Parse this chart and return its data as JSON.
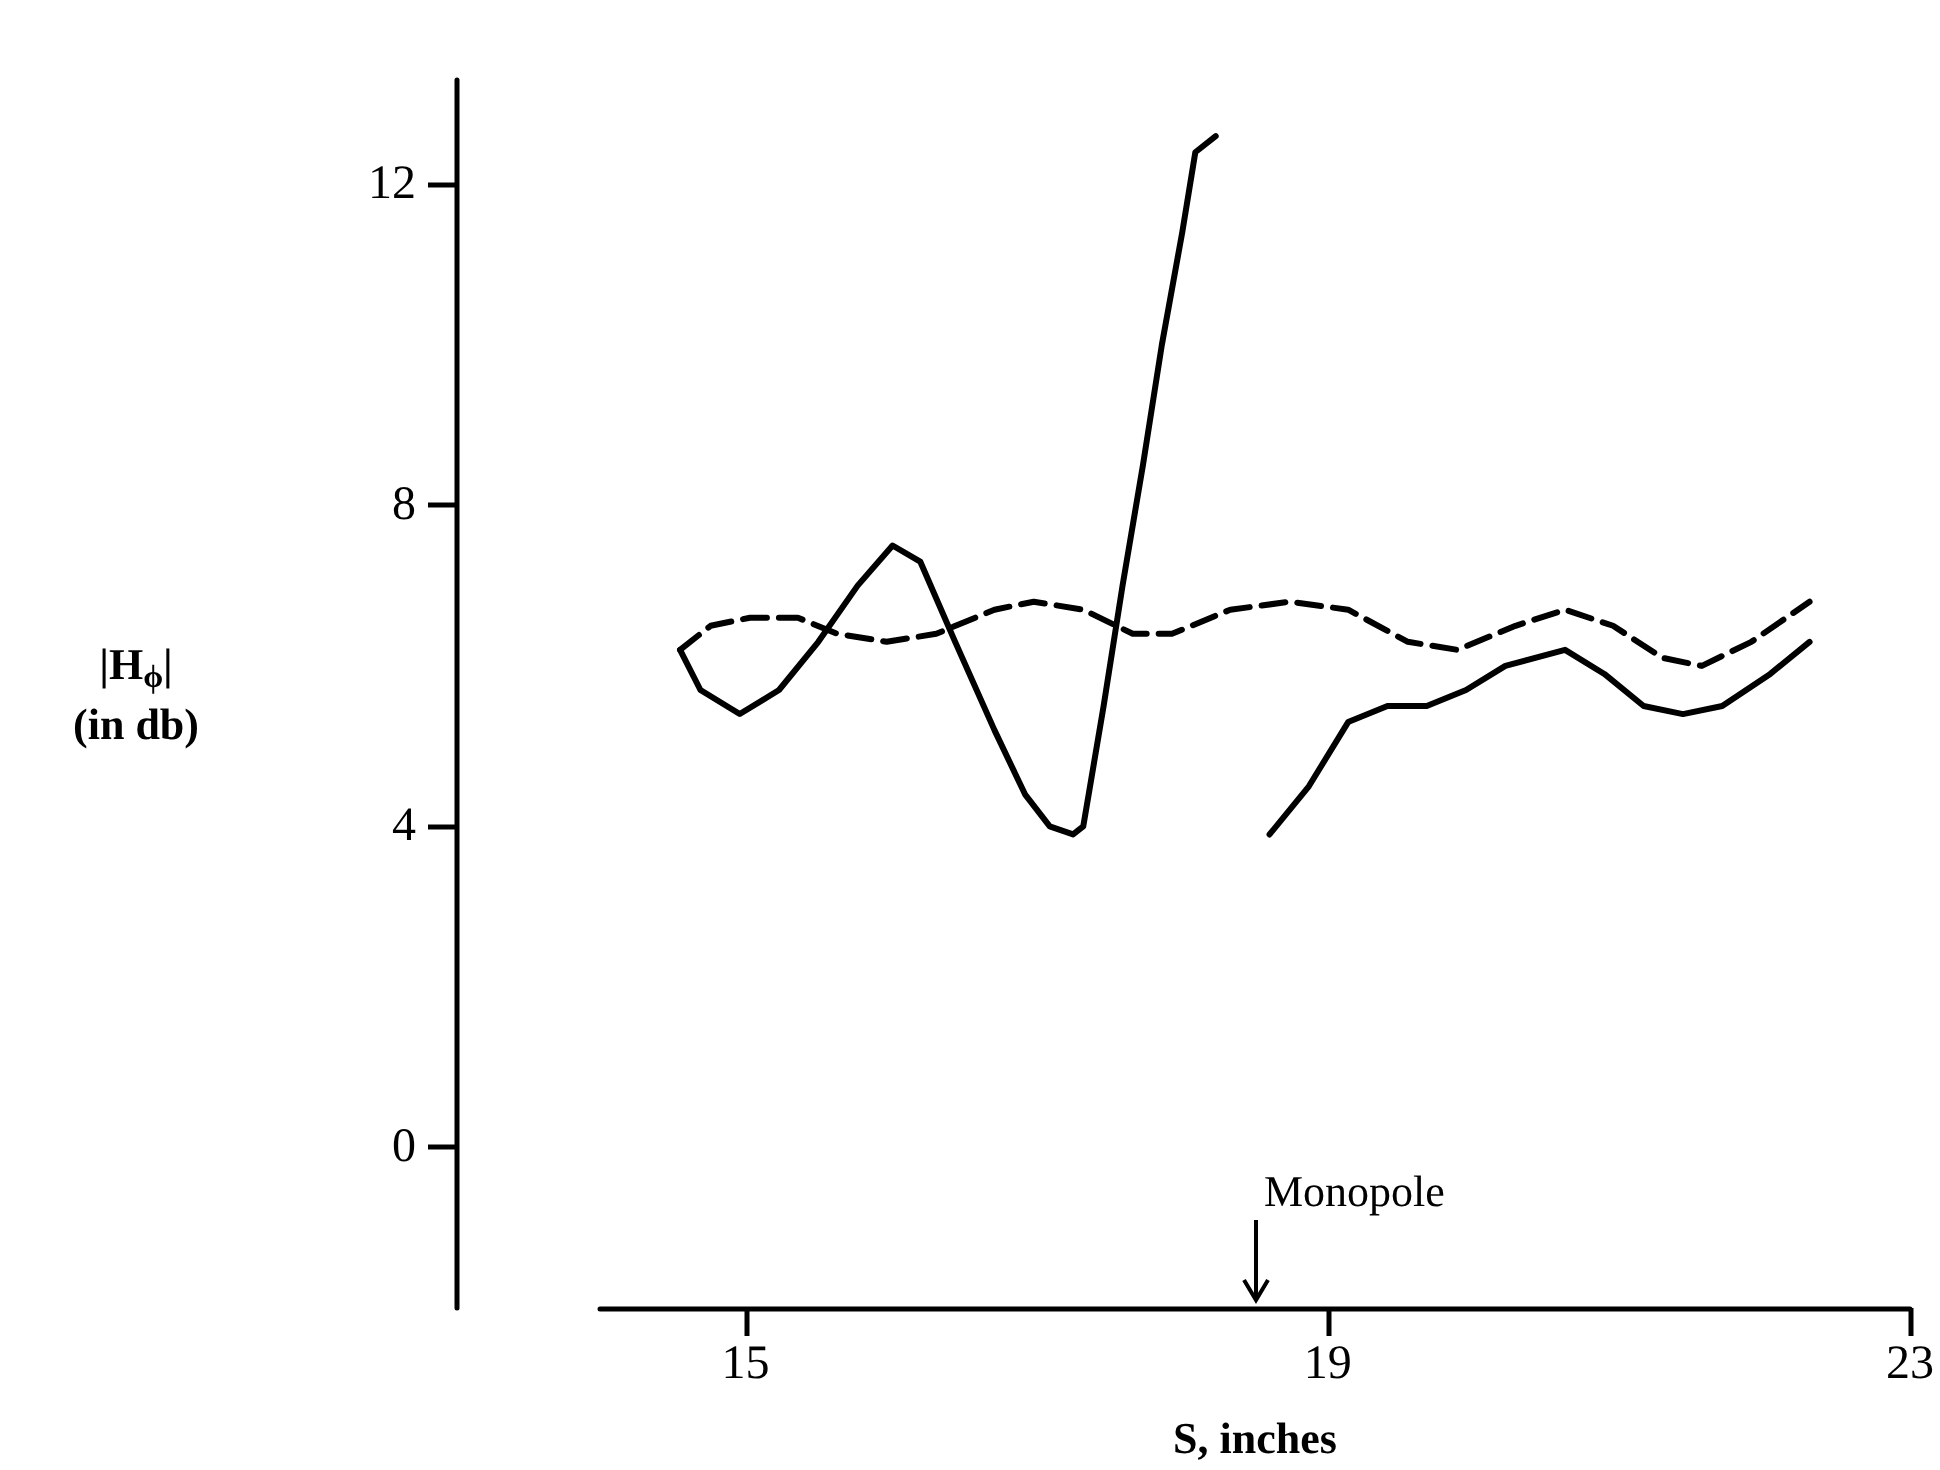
{
  "chart_data": {
    "type": "line",
    "ylabel": "|H$_{ϕ}$|\n(in db)",
    "xlabel": "S, inches",
    "xlim": [
      14,
      23
    ],
    "xticks": [
      15,
      19,
      23
    ],
    "ylim": [
      -2,
      13.3
    ],
    "yticks": [
      0,
      4,
      8,
      12
    ],
    "annotations": [
      "Monopole"
    ],
    "series": [
      {
        "color": "#000000",
        "line_style": "solid",
        "x": [
          14.55,
          14.69,
          14.96,
          15.23,
          15.5,
          15.77,
          16.01,
          16.2,
          16.44,
          16.71,
          16.92,
          17.09,
          17.25,
          17.32,
          17.46,
          17.59,
          17.73,
          17.86,
          18.0,
          18.09,
          18.23
        ],
        "values": [
          6.2,
          5.7,
          5.4,
          5.7,
          6.3,
          7.0,
          7.5,
          7.3,
          6.3,
          5.2,
          4.4,
          4.0,
          3.9,
          4.0,
          5.5,
          7.0,
          8.5,
          10.0,
          11.4,
          12.4,
          12.6
        ]
      },
      {
        "color": "#000000",
        "line_style": "solid",
        "x": [
          18.6,
          18.87,
          19.14,
          19.41,
          19.68,
          19.95,
          20.22,
          20.63,
          20.9,
          21.17,
          21.44,
          21.71,
          22.04,
          22.31
        ],
        "values": [
          3.9,
          4.5,
          5.3,
          5.5,
          5.5,
          5.7,
          6.0,
          6.2,
          5.9,
          5.5,
          5.4,
          5.5,
          5.9,
          6.3
        ]
      },
      {
        "color": "#000000",
        "line_style": "dashed",
        "x": [
          14.55,
          14.76,
          15.03,
          15.36,
          15.63,
          15.97,
          16.31,
          16.71,
          16.98,
          17.32,
          17.66,
          17.93,
          18.33,
          18.74,
          19.14,
          19.55,
          19.89,
          20.29,
          20.63,
          20.96,
          21.3,
          21.57,
          21.91,
          22.31
        ],
        "values": [
          6.2,
          6.5,
          6.6,
          6.6,
          6.4,
          6.3,
          6.4,
          6.7,
          6.8,
          6.7,
          6.4,
          6.4,
          6.7,
          6.8,
          6.7,
          6.3,
          6.2,
          6.5,
          6.7,
          6.5,
          6.1,
          6.0,
          6.3,
          6.8
        ]
      }
    ]
  }
}
